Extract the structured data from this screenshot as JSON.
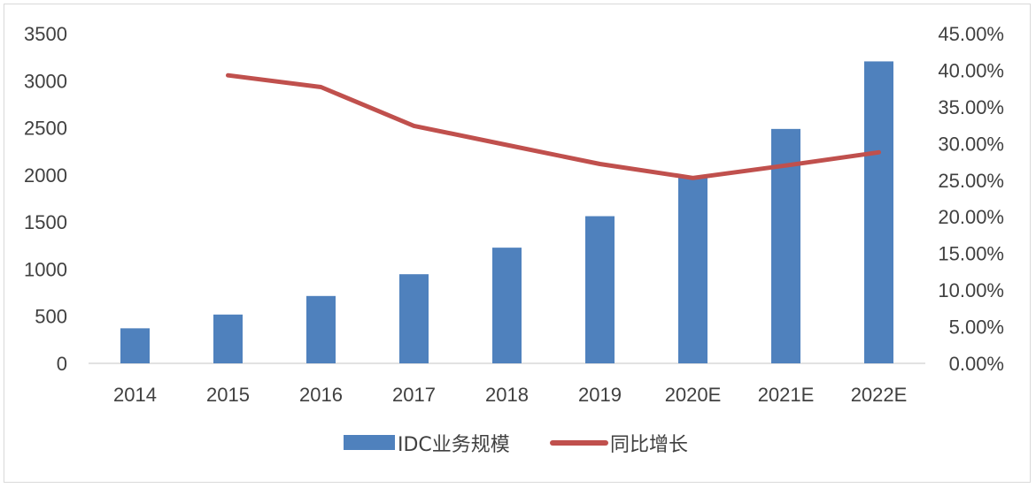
{
  "chart_data": {
    "type": "bar",
    "categories": [
      "2014",
      "2015",
      "2016",
      "2017",
      "2018",
      "2019",
      "2020E",
      "2021E",
      "2022E"
    ],
    "series": [
      {
        "name": "IDC业务规模",
        "type": "bar",
        "axis": "left",
        "color": "#4f81bd",
        "values": [
          372,
          518,
          715,
          946,
          1228,
          1562,
          1989,
          2488,
          3205
        ]
      },
      {
        "name": "同比增长",
        "type": "line",
        "axis": "right",
        "color": "#c0504d",
        "values": [
          null,
          39.3,
          37.7,
          32.4,
          29.8,
          27.2,
          25.3,
          27.0,
          28.8
        ]
      }
    ],
    "y_left": {
      "ylim": [
        0,
        3500
      ],
      "ticks": [
        "0",
        "500",
        "1000",
        "1500",
        "2000",
        "2500",
        "3000",
        "3500"
      ]
    },
    "y_right": {
      "ylim": [
        0,
        45
      ],
      "ticks": [
        "0.00%",
        "5.00%",
        "10.00%",
        "15.00%",
        "20.00%",
        "25.00%",
        "30.00%",
        "35.00%",
        "40.00%",
        "45.00%"
      ]
    },
    "grid": false,
    "legend_position": "bottom"
  }
}
